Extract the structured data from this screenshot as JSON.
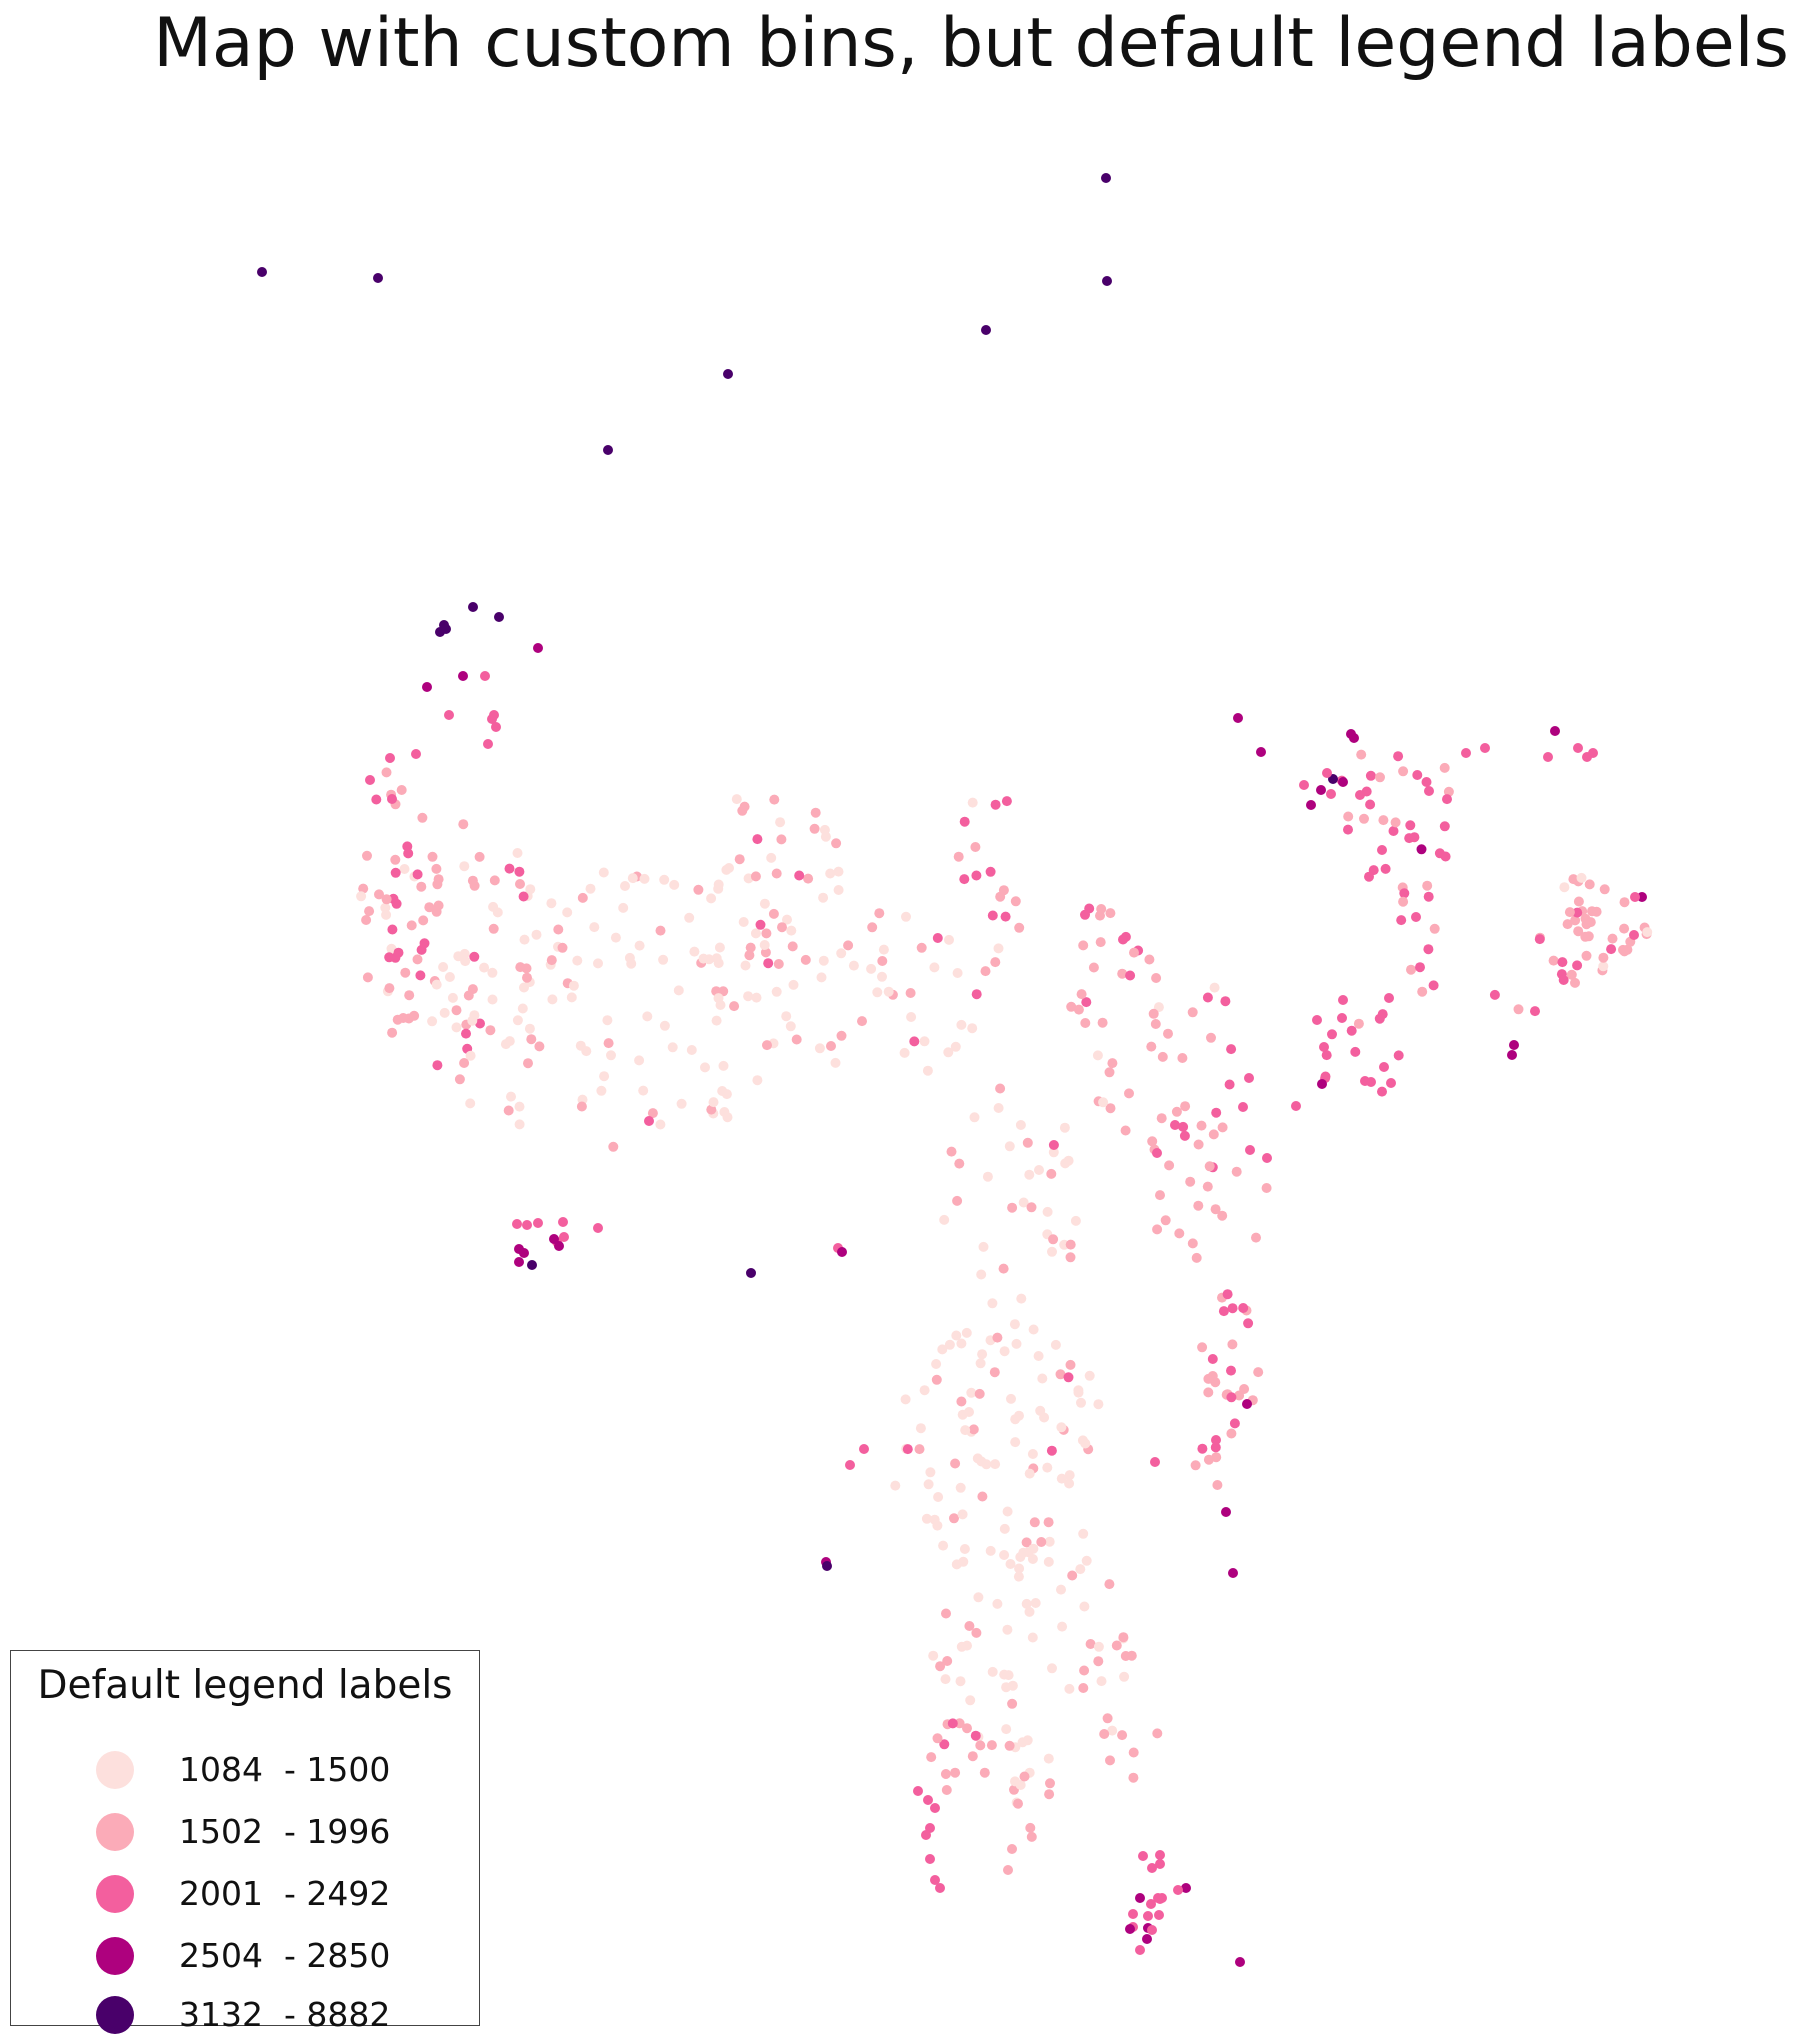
{
  "title": "Map with custom bins, but default legend labels",
  "legend": {
    "title": "Default legend labels",
    "items": [
      {
        "label": "1084  - 1500",
        "color": "#fde0dd"
      },
      {
        "label": "1502  - 1996",
        "color": "#fbabb8"
      },
      {
        "label": "2001  - 2492",
        "color": "#f35f9e"
      },
      {
        "label": "2504  - 2850",
        "color": "#ae017e"
      },
      {
        "label": "3132  - 8882",
        "color": "#49006a"
      }
    ]
  },
  "chart_data": {
    "type": "scatter",
    "colormap": "RdPu",
    "bins": [
      [
        1084,
        1500
      ],
      [
        1502,
        1996
      ],
      [
        2001,
        2492
      ],
      [
        2504,
        2850
      ],
      [
        3132,
        8882
      ]
    ],
    "axes": "off",
    "legend_position": "lower-left"
  }
}
